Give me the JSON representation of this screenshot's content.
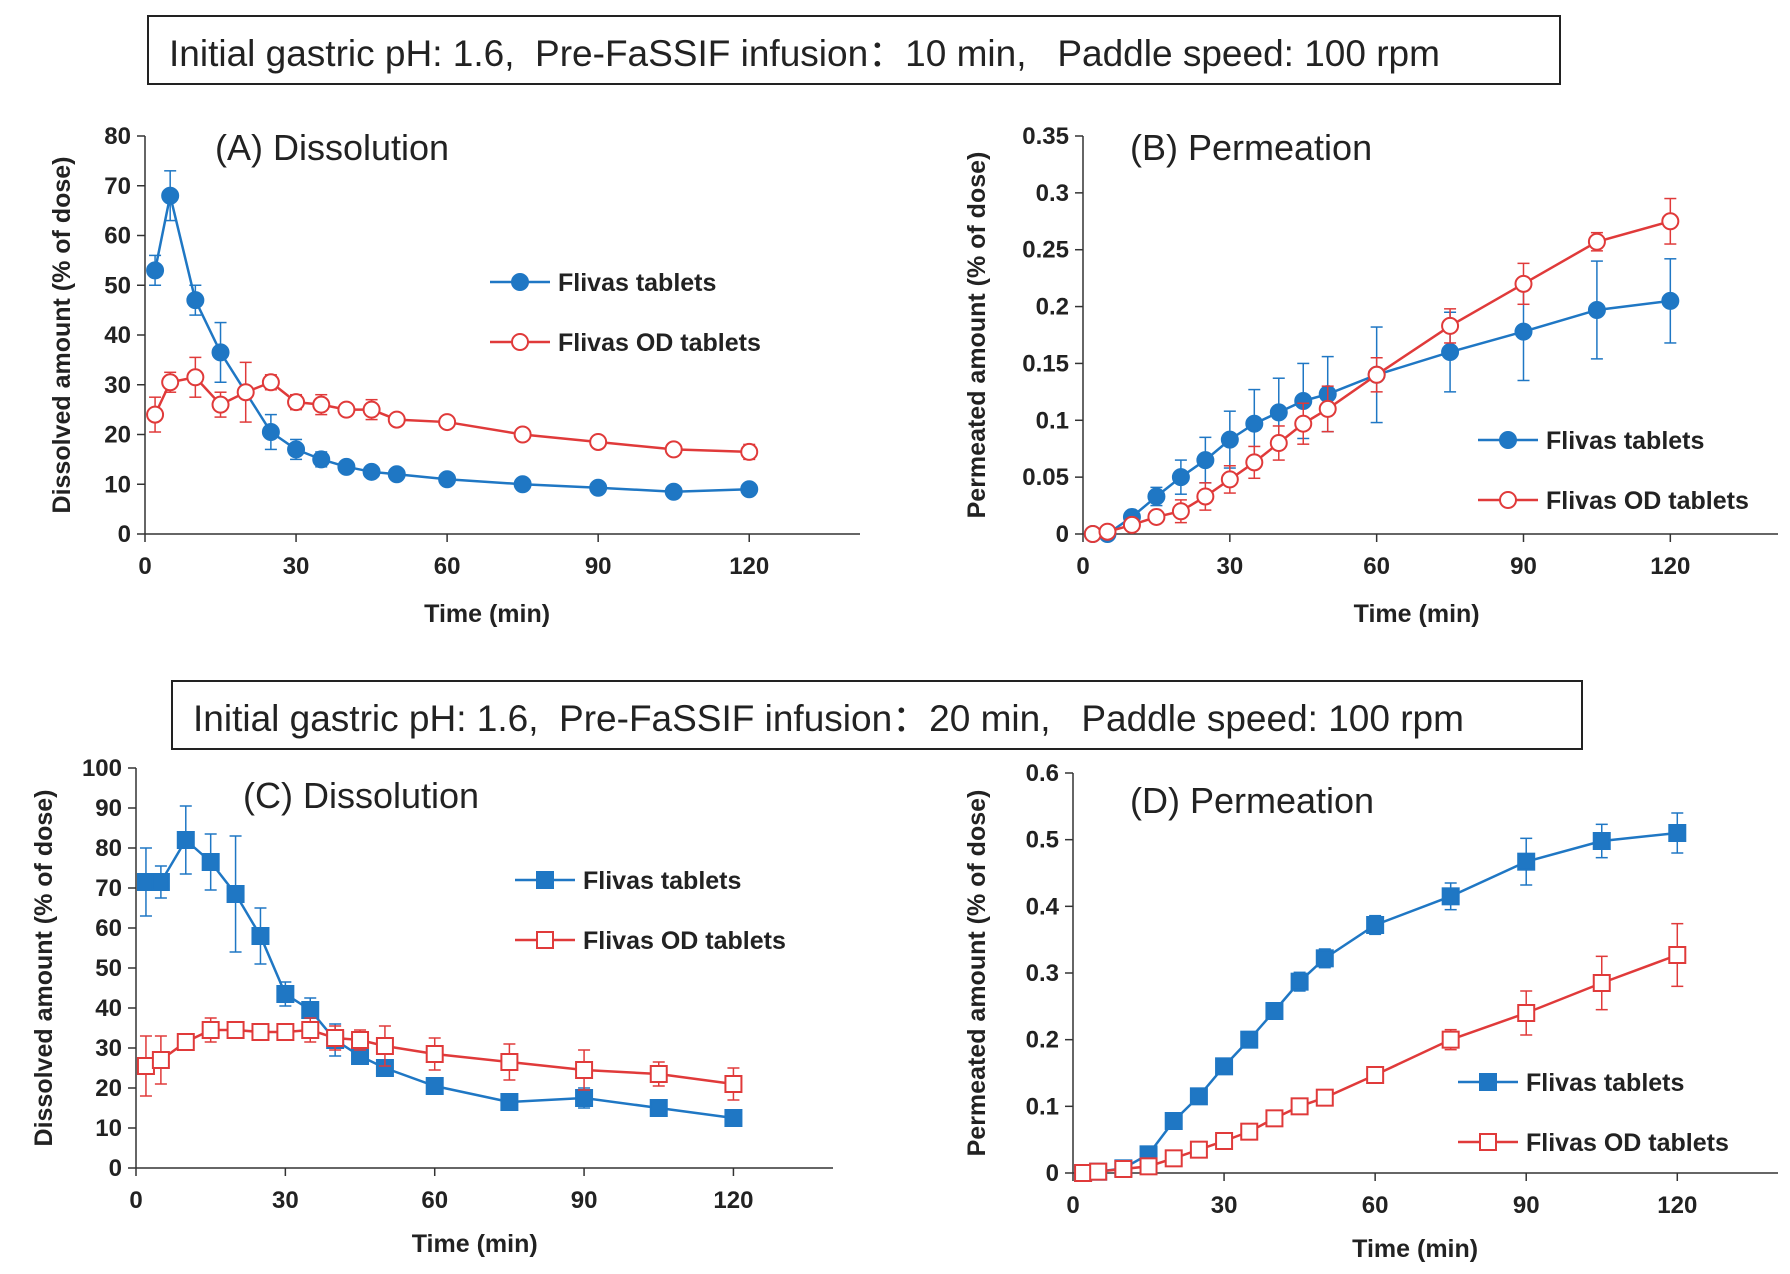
{
  "conditions": {
    "top": "Initial gastric pH: 1.6,  Pre-FaSSIF infusion：10 min,   Paddle speed: 100 rpm",
    "bottom": "Initial gastric pH: 1.6,  Pre-FaSSIF infusion：20 min,   Paddle speed: 100 rpm"
  },
  "colors": {
    "blue": "#1f77c4",
    "red": "#e03a3a"
  },
  "chart_data": [
    {
      "id": "A",
      "type": "line",
      "title": "(A) Dissolution",
      "xlabel": "Time  (min)",
      "ylabel": "Dissolved amount (% of dose)",
      "xlim": [
        0,
        142
      ],
      "ylim": [
        0,
        80
      ],
      "xticks": [
        0,
        30,
        60,
        90,
        120
      ],
      "yticks": [
        0,
        10,
        20,
        30,
        40,
        50,
        60,
        70,
        80
      ],
      "ytick_labels": [
        "0",
        "10",
        "20",
        "30",
        "40",
        "50",
        "60",
        "70",
        "80"
      ],
      "series": [
        {
          "name": "Flivas tablets",
          "color": "#1f77c4",
          "marker": "circle",
          "filled": true,
          "x": [
            2,
            5,
            10,
            15,
            25,
            30,
            35,
            40,
            45,
            50,
            60,
            75,
            90,
            105,
            120
          ],
          "y": [
            53,
            68,
            47,
            36.5,
            20.5,
            17,
            15,
            13.5,
            12.5,
            12,
            11,
            10,
            9.3,
            8.5,
            9
          ],
          "err": [
            3,
            5,
            3,
            6,
            3.5,
            2,
            1.5,
            1,
            1,
            1,
            1,
            0.8,
            0.8,
            0.8,
            1.2
          ]
        },
        {
          "name": "Flivas OD tablets",
          "color": "#e03a3a",
          "marker": "circle",
          "filled": false,
          "x": [
            2,
            5,
            10,
            15,
            20,
            25,
            30,
            35,
            40,
            45,
            50,
            60,
            75,
            90,
            105,
            120
          ],
          "y": [
            24,
            30.5,
            31.5,
            26,
            28.5,
            30.5,
            26.5,
            26,
            25,
            25,
            23,
            22.5,
            20,
            18.5,
            17,
            16.5
          ],
          "err": [
            3.5,
            2,
            4,
            2.5,
            6,
            1.5,
            1.5,
            2,
            1,
            2,
            1,
            1,
            1,
            1,
            1,
            1.5
          ]
        }
      ]
    },
    {
      "id": "B",
      "type": "line",
      "title": "(B) Permeation",
      "xlabel": "Time  (min)",
      "ylabel": "Permeated amount (% of dose)",
      "xlim": [
        0,
        142
      ],
      "ylim": [
        0,
        0.35
      ],
      "xticks": [
        0,
        30,
        60,
        90,
        120
      ],
      "yticks": [
        0,
        0.05,
        0.1,
        0.15,
        0.2,
        0.25,
        0.3,
        0.35
      ],
      "ytick_labels": [
        "0",
        "0.05",
        "0.1",
        "0.15",
        "0.2",
        "0.25",
        "0.3",
        "0.35"
      ],
      "series": [
        {
          "name": "Flivas tablets",
          "color": "#1f77c4",
          "marker": "circle",
          "filled": true,
          "x": [
            2,
            5,
            10,
            15,
            20,
            25,
            30,
            35,
            40,
            45,
            50,
            60,
            75,
            90,
            105,
            120
          ],
          "y": [
            0,
            0,
            0.015,
            0.033,
            0.05,
            0.065,
            0.083,
            0.097,
            0.107,
            0.117,
            0.123,
            0.14,
            0.16,
            0.178,
            0.197,
            0.205
          ],
          "err": [
            0,
            0,
            0.005,
            0.008,
            0.015,
            0.02,
            0.025,
            0.03,
            0.03,
            0.033,
            0.033,
            0.042,
            0.035,
            0.043,
            0.043,
            0.037
          ]
        },
        {
          "name": "Flivas OD tablets",
          "color": "#e03a3a",
          "marker": "circle",
          "filled": false,
          "x": [
            2,
            5,
            10,
            15,
            20,
            25,
            30,
            35,
            40,
            45,
            50,
            60,
            75,
            90,
            105,
            120
          ],
          "y": [
            0,
            0.002,
            0.008,
            0.015,
            0.02,
            0.033,
            0.048,
            0.063,
            0.08,
            0.097,
            0.11,
            0.14,
            0.183,
            0.22,
            0.257,
            0.275
          ],
          "err": [
            0,
            0.002,
            0.004,
            0.005,
            0.01,
            0.012,
            0.012,
            0.014,
            0.015,
            0.018,
            0.02,
            0.015,
            0.015,
            0.018,
            0.008,
            0.02
          ]
        }
      ]
    },
    {
      "id": "C",
      "type": "line",
      "title": "(C) Dissolution",
      "xlabel": "Time  (min)",
      "ylabel": "Dissolved amount (% of dose)",
      "xlim": [
        0,
        140
      ],
      "ylim": [
        0,
        100
      ],
      "xticks": [
        0,
        30,
        60,
        90,
        120
      ],
      "yticks": [
        0,
        10,
        20,
        30,
        40,
        50,
        60,
        70,
        80,
        90,
        100
      ],
      "ytick_labels": [
        "0",
        "10",
        "20",
        "30",
        "40",
        "50",
        "60",
        "70",
        "80",
        "90",
        "100"
      ],
      "series": [
        {
          "name": "Flivas tablets",
          "color": "#1f77c4",
          "marker": "square",
          "filled": true,
          "x": [
            2,
            5,
            10,
            15,
            20,
            25,
            30,
            35,
            40,
            45,
            50,
            60,
            75,
            90,
            105,
            120
          ],
          "y": [
            71.5,
            71.5,
            82,
            76.5,
            68.5,
            58,
            43.5,
            39.5,
            32,
            28,
            25,
            20.5,
            16.5,
            17.5,
            15,
            12.5
          ],
          "err": [
            8.5,
            4,
            8.5,
            7,
            14.5,
            7,
            3,
            3,
            4,
            1.5,
            1.5,
            1.5,
            1,
            2.5,
            1,
            1
          ]
        },
        {
          "name": "Flivas OD tablets",
          "color": "#e03a3a",
          "marker": "square",
          "filled": false,
          "x": [
            2,
            5,
            10,
            15,
            20,
            25,
            30,
            35,
            40,
            45,
            50,
            60,
            75,
            90,
            105,
            120
          ],
          "y": [
            25.5,
            27,
            31.5,
            34.5,
            34.5,
            34,
            34,
            34.5,
            32.5,
            32,
            30.5,
            28.5,
            26.5,
            24.5,
            23.5,
            21
          ],
          "err": [
            7.5,
            6,
            1.5,
            3,
            2,
            1.5,
            1.5,
            3,
            3,
            2.5,
            5,
            4,
            4.5,
            5,
            3,
            4
          ]
        }
      ]
    },
    {
      "id": "D",
      "type": "line",
      "title": "(D) Permeation",
      "xlabel": "Time  (min)",
      "ylabel": "Permeated amount (% of dose)",
      "xlim": [
        0,
        140
      ],
      "ylim": [
        0,
        0.6
      ],
      "xticks": [
        0,
        30,
        60,
        90,
        120
      ],
      "yticks": [
        0,
        0.1,
        0.2,
        0.3,
        0.4,
        0.5,
        0.6
      ],
      "ytick_labels": [
        "0",
        "0.1",
        "0.2",
        "0.3",
        "0.4",
        "0.5",
        "0.6"
      ],
      "series": [
        {
          "name": "Flivas tablets",
          "color": "#1f77c4",
          "marker": "square",
          "filled": true,
          "x": [
            2,
            5,
            10,
            15,
            20,
            25,
            30,
            35,
            40,
            45,
            50,
            60,
            75,
            90,
            105,
            120
          ],
          "y": [
            0,
            0.002,
            0.007,
            0.028,
            0.078,
            0.115,
            0.16,
            0.2,
            0.243,
            0.287,
            0.322,
            0.372,
            0.415,
            0.467,
            0.498,
            0.51
          ],
          "err": [
            0,
            0.001,
            0.004,
            0.006,
            0.01,
            0.01,
            0.012,
            0.012,
            0.012,
            0.014,
            0.014,
            0.014,
            0.02,
            0.035,
            0.025,
            0.03
          ]
        },
        {
          "name": "Flivas OD tablets",
          "color": "#e03a3a",
          "marker": "square",
          "filled": false,
          "x": [
            2,
            5,
            10,
            15,
            20,
            25,
            30,
            35,
            40,
            45,
            50,
            60,
            75,
            90,
            105,
            120
          ],
          "y": [
            0,
            0.002,
            0.006,
            0.01,
            0.022,
            0.035,
            0.048,
            0.062,
            0.082,
            0.1,
            0.113,
            0.147,
            0.2,
            0.24,
            0.285,
            0.327
          ],
          "err": [
            0,
            0.001,
            0.003,
            0.004,
            0.005,
            0.005,
            0.006,
            0.006,
            0.008,
            0.008,
            0.009,
            0.01,
            0.015,
            0.033,
            0.04,
            0.047
          ]
        }
      ]
    }
  ]
}
